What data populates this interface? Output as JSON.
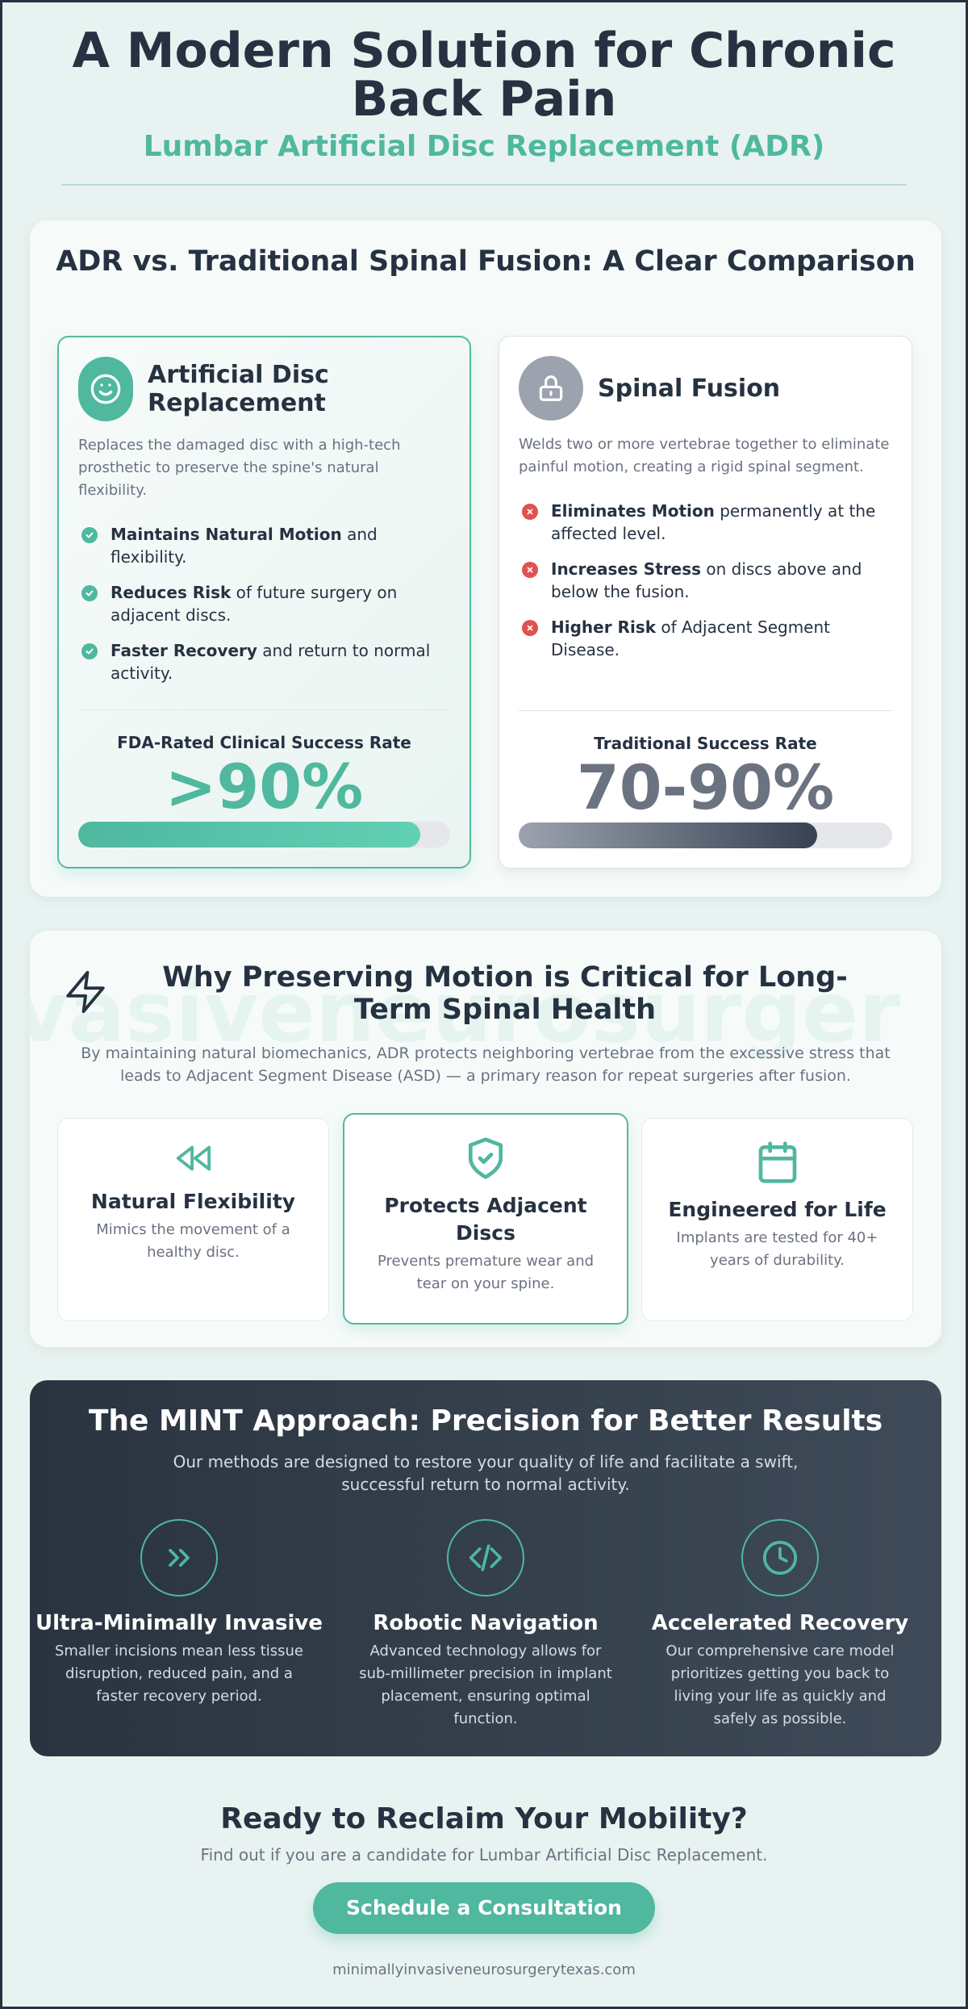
{
  "header": {
    "title": "A Modern Solution for Chronic Back Pain",
    "subtitle": "Lumbar Artificial Disc Replacement (ADR)"
  },
  "comparison": {
    "title": "ADR vs. Traditional Spinal Fusion: A Clear Comparison",
    "adr": {
      "icon": "smile-icon",
      "title": "Artificial Disc Replacement",
      "description": "Replaces the damaged disc with a high-tech prosthetic to preserve the spine's natural flexibility.",
      "bullets": [
        {
          "strong": "Maintains Natural Motion",
          "text": " and flexibility."
        },
        {
          "strong": "Reduces Risk",
          "text": " of future surgery on adjacent discs."
        },
        {
          "strong": "Faster Recovery",
          "text": " and return to normal activity."
        }
      ],
      "stat_label": "FDA-Rated Clinical Success Rate",
      "stat_value": ">90%",
      "bar_fraction": 0.92,
      "accent": "#4fb89f"
    },
    "fusion": {
      "icon": "lock-icon",
      "title": "Spinal Fusion",
      "description": "Welds two or more vertebrae together to eliminate painful motion, creating a rigid spinal segment.",
      "bullets": [
        {
          "strong": "Eliminates Motion",
          "text": " permanently at the affected level."
        },
        {
          "strong": "Increases Stress",
          "text": " on discs above and below the fusion."
        },
        {
          "strong": "Higher Risk",
          "text": " of Adjacent Segment Disease."
        }
      ],
      "stat_label": "Traditional Success Rate",
      "stat_value": "70-90%",
      "bar_fraction": 0.8,
      "accent": "#6b7280"
    }
  },
  "motion": {
    "watermark": "vasiveneurosurger",
    "title": "Why Preserving Motion is Critical for Long-Term Spinal Health",
    "text": "By maintaining natural biomechanics, ADR protects neighboring vertebrae from the excessive stress that leads to Adjacent Segment Disease (ASD) — a primary reason for repeat surgeries after fusion.",
    "features": [
      {
        "icon": "rewind-icon",
        "title": "Natural Flexibility",
        "desc": "Mimics the movement of a healthy disc."
      },
      {
        "icon": "shield-check-icon",
        "title": "Protects Adjacent Discs",
        "desc": "Prevents premature wear and tear on your spine."
      },
      {
        "icon": "calendar-icon",
        "title": "Engineered for Life",
        "desc": "Implants are tested for 40+ years of durability."
      }
    ]
  },
  "mint": {
    "title": "The MINT Approach: Precision for Better Results",
    "text": "Our methods are designed to restore your quality of life and facilitate a swift, successful return to normal activity.",
    "items": [
      {
        "icon": "chevrons-right-icon",
        "title": "Ultra-Minimally Invasive",
        "desc": "Smaller incisions mean less tissue disruption, reduced pain, and a faster recovery period."
      },
      {
        "icon": "code-icon",
        "title": "Robotic Navigation",
        "desc": "Advanced technology allows for sub-millimeter precision in implant placement, ensuring optimal function."
      },
      {
        "icon": "clock-icon",
        "title": "Accelerated Recovery",
        "desc": "Our comprehensive care model prioritizes getting you back to living your life as quickly and safely as possible."
      }
    ]
  },
  "cta": {
    "title": "Ready to Reclaim Your Mobility?",
    "text": "Find out if you are a candidate for Lumbar Artificial Disc Replacement.",
    "button": "Schedule a Consultation",
    "url": "minimallyinvasiveneurosurgerytexas.com"
  },
  "colors": {
    "accent": "#4fb89f",
    "dark": "#263241",
    "danger": "#e05252"
  }
}
